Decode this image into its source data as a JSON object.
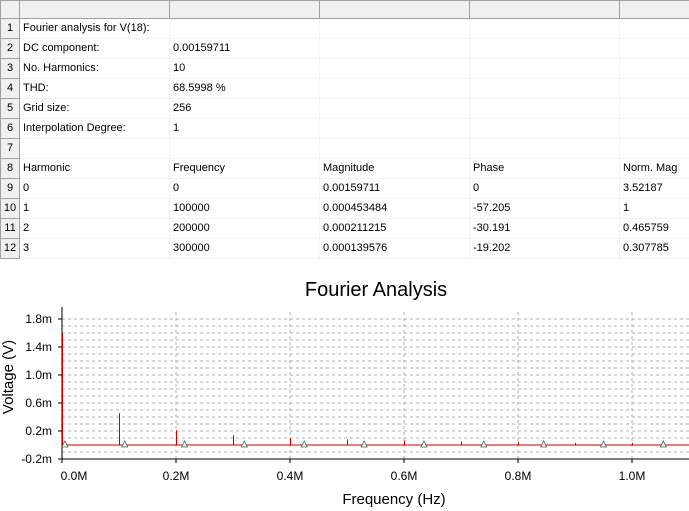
{
  "table": {
    "rows": [
      {
        "num": "1",
        "cells": [
          "Fourier analysis for V(18):",
          "",
          "",
          "",
          ""
        ]
      },
      {
        "num": "2",
        "cells": [
          "DC component:",
          "0.00159711",
          "",
          "",
          ""
        ]
      },
      {
        "num": "3",
        "cells": [
          "No. Harmonics:",
          "10",
          "",
          "",
          ""
        ]
      },
      {
        "num": "4",
        "cells": [
          "THD:",
          "68.5998 %",
          "",
          "",
          ""
        ]
      },
      {
        "num": "5",
        "cells": [
          "Grid size:",
          "256",
          "",
          "",
          ""
        ]
      },
      {
        "num": "6",
        "cells": [
          "Interpolation Degree:",
          "1",
          "",
          "",
          ""
        ]
      },
      {
        "num": "7",
        "cells": [
          "",
          "",
          "",
          "",
          ""
        ]
      },
      {
        "num": "8",
        "cells": [
          "Harmonic",
          "Frequency",
          "Magnitude",
          "Phase",
          "Norm. Mag"
        ]
      },
      {
        "num": "9",
        "cells": [
          "0",
          "0",
          "0.00159711",
          "0",
          "3.52187"
        ]
      },
      {
        "num": "10",
        "cells": [
          "1",
          "100000",
          "0.000453484",
          "-57.205",
          "1"
        ]
      },
      {
        "num": "11",
        "cells": [
          "2",
          "200000",
          "0.000211215",
          "-30.191",
          "0.465759"
        ]
      },
      {
        "num": "12",
        "cells": [
          "3",
          "300000",
          "0.000139576",
          "-19.202",
          "0.307785"
        ]
      }
    ]
  },
  "chart_data": {
    "type": "line",
    "title": "Fourier Analysis",
    "xlabel": "Frequency (Hz)",
    "ylabel": "Voltage (V)",
    "xlim": [
      0,
      1100000
    ],
    "ylim": [
      -0.0002,
      0.0019
    ],
    "x_ticks": [
      {
        "value": 0,
        "label": "0.0M"
      },
      {
        "value": 200000,
        "label": "0.2M"
      },
      {
        "value": 400000,
        "label": "0.4M"
      },
      {
        "value": 600000,
        "label": "0.6M"
      },
      {
        "value": 800000,
        "label": "0.8M"
      },
      {
        "value": 1000000,
        "label": "1.0M"
      }
    ],
    "y_ticks": [
      {
        "value": 0.0018,
        "label": "1.8m"
      },
      {
        "value": 0.0014,
        "label": "1.4m"
      },
      {
        "value": 0.001,
        "label": "1.0m"
      },
      {
        "value": 0.0006,
        "label": "0.6m"
      },
      {
        "value": 0.0002,
        "label": "0.2m"
      },
      {
        "value": -0.0002,
        "label": "-0.2m"
      }
    ],
    "grid": true,
    "series": [
      {
        "color": "#cc0000",
        "spikes": [
          {
            "x": 0,
            "y": 0.00159711
          },
          {
            "x": 100000,
            "y": 0.000453484
          },
          {
            "x": 200000,
            "y": 0.000211215
          },
          {
            "x": 300000,
            "y": 0.000139576
          },
          {
            "x": 400000,
            "y": 0.0001
          },
          {
            "x": 500000,
            "y": 8e-05
          },
          {
            "x": 600000,
            "y": 6e-05
          },
          {
            "x": 700000,
            "y": 5e-05
          },
          {
            "x": 800000,
            "y": 4e-05
          },
          {
            "x": 900000,
            "y": 3e-05
          },
          {
            "x": 1000000,
            "y": 3e-05
          }
        ],
        "baseline": 0,
        "markers_x": [
          5000,
          110000,
          215000,
          320000,
          425000,
          530000,
          635000,
          740000,
          845000,
          950000,
          1055000
        ]
      }
    ]
  }
}
